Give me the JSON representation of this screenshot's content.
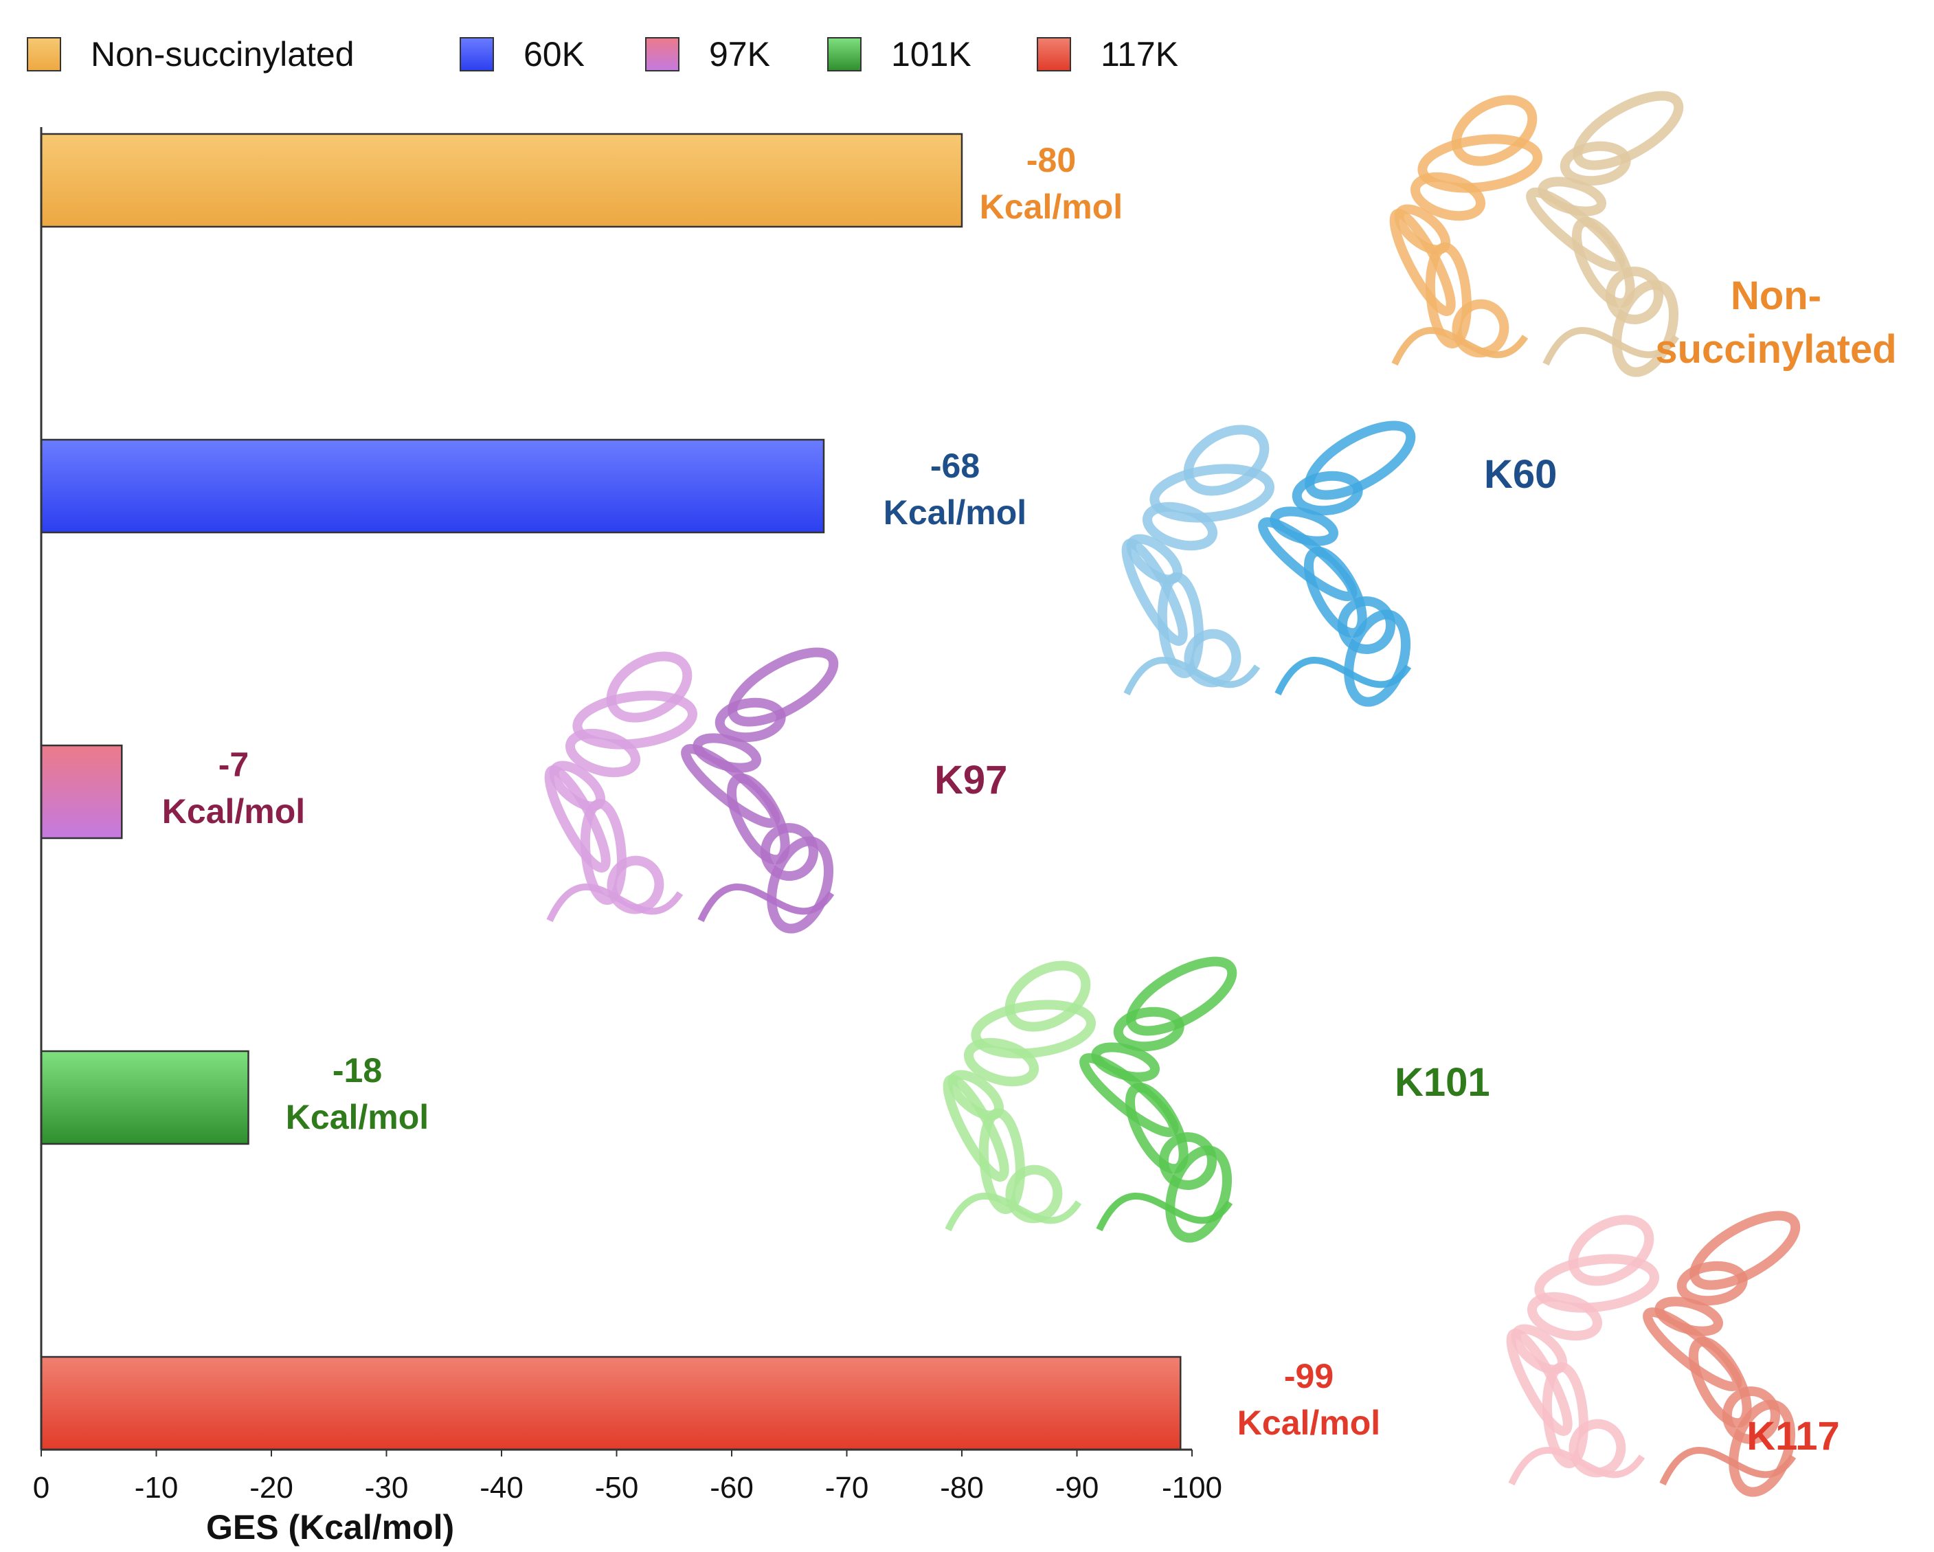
{
  "chart_data": {
    "type": "bar",
    "orientation": "horizontal",
    "categories": [
      "Non-succinylated",
      "60K",
      "97K",
      "101K",
      "117K"
    ],
    "values": [
      -80,
      -68,
      -7,
      -18,
      -99
    ],
    "value_labels": [
      {
        "value": "-80",
        "unit": "Kcal/mol"
      },
      {
        "value": "-68",
        "unit": "Kcal/mol"
      },
      {
        "value": "-7",
        "unit": "Kcal/mol"
      },
      {
        "value": "-18",
        "unit": "Kcal/mol"
      },
      {
        "value": "-99",
        "unit": "Kcal/mol"
      }
    ],
    "xlabel": "GES (Kcal/mol)",
    "xlim": [
      0,
      -100
    ],
    "xticks": [
      "0",
      "-10",
      "-20",
      "-30",
      "-40",
      "-50",
      "-60",
      "-70",
      "-80",
      "-90",
      "-100"
    ],
    "legend": {
      "placement": "top",
      "entries": [
        "Non-succinylated",
        "60K",
        "97K",
        "101K",
        "117K"
      ]
    },
    "grid": false,
    "bar_colors": [
      [
        "#f7c872",
        "#eda842"
      ],
      [
        "#6a7cff",
        "#2c3ff0"
      ],
      [
        "#ec7a8a",
        "#c47ae0"
      ],
      [
        "#7fe07f",
        "#2f8f2f"
      ],
      [
        "#f08070",
        "#e23c2a"
      ]
    ],
    "label_colors": [
      "#ec8a2e",
      "#1f4f8a",
      "#8a1f4a",
      "#2f7a1a",
      "#e23a2a"
    ],
    "structure_labels": [
      {
        "lines": [
          "Non-",
          "succinylated"
        ],
        "color": "#ec8a2e",
        "icon": "protein-structure-non-succinylated"
      },
      {
        "lines": [
          "K60"
        ],
        "color": "#1f4f8a",
        "icon": "protein-structure-k60"
      },
      {
        "lines": [
          "K97"
        ],
        "color": "#8a1f4a",
        "icon": "protein-structure-k97"
      },
      {
        "lines": [
          "K101"
        ],
        "color": "#2f7a1a",
        "icon": "protein-structure-k101"
      },
      {
        "lines": [
          "K117"
        ],
        "color": "#e23a2a",
        "icon": "protein-structure-k117"
      }
    ]
  }
}
